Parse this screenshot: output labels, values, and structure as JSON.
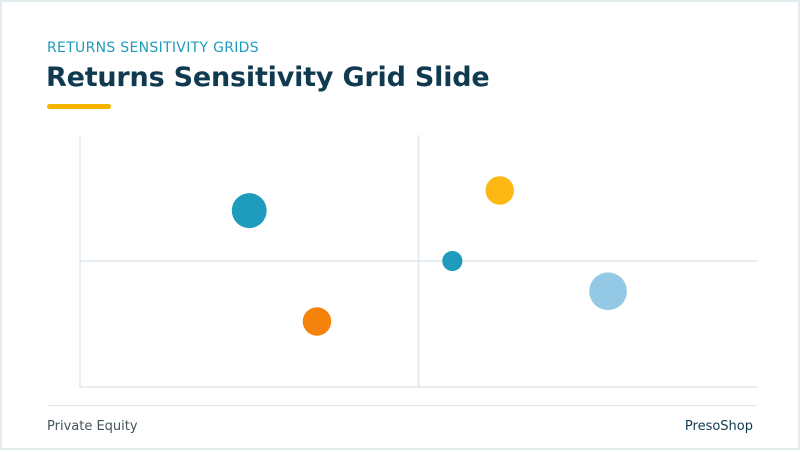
{
  "header": {
    "eyebrow": "RETURNS SENSITIVITY GRIDS",
    "title": "Returns Sensitivity Grid Slide"
  },
  "footer": {
    "left": "Private Equity",
    "right": "PresoShop"
  },
  "colors": {
    "accent": "#f5b400",
    "title": "#103a50",
    "eyebrow": "#1f9bbd",
    "axis": "#dfe7eb"
  },
  "chart_data": {
    "type": "scatter",
    "title": "",
    "xlabel": "",
    "ylabel": "",
    "xlim": [
      0,
      100
    ],
    "ylim": [
      0,
      100
    ],
    "grid": false,
    "quadrant_lines": {
      "x": 50,
      "y": 50
    },
    "points": [
      {
        "x": 25,
        "y": 70,
        "size": 3,
        "color": "#1f9bbd"
      },
      {
        "x": 35,
        "y": 26,
        "size": 2,
        "color": "#f5820a"
      },
      {
        "x": 62,
        "y": 78,
        "size": 2,
        "color": "#fdb813"
      },
      {
        "x": 55,
        "y": 50,
        "size": 1,
        "color": "#1f9bbd"
      },
      {
        "x": 78,
        "y": 38,
        "size": 3.5,
        "color": "#93c9e4"
      }
    ]
  }
}
